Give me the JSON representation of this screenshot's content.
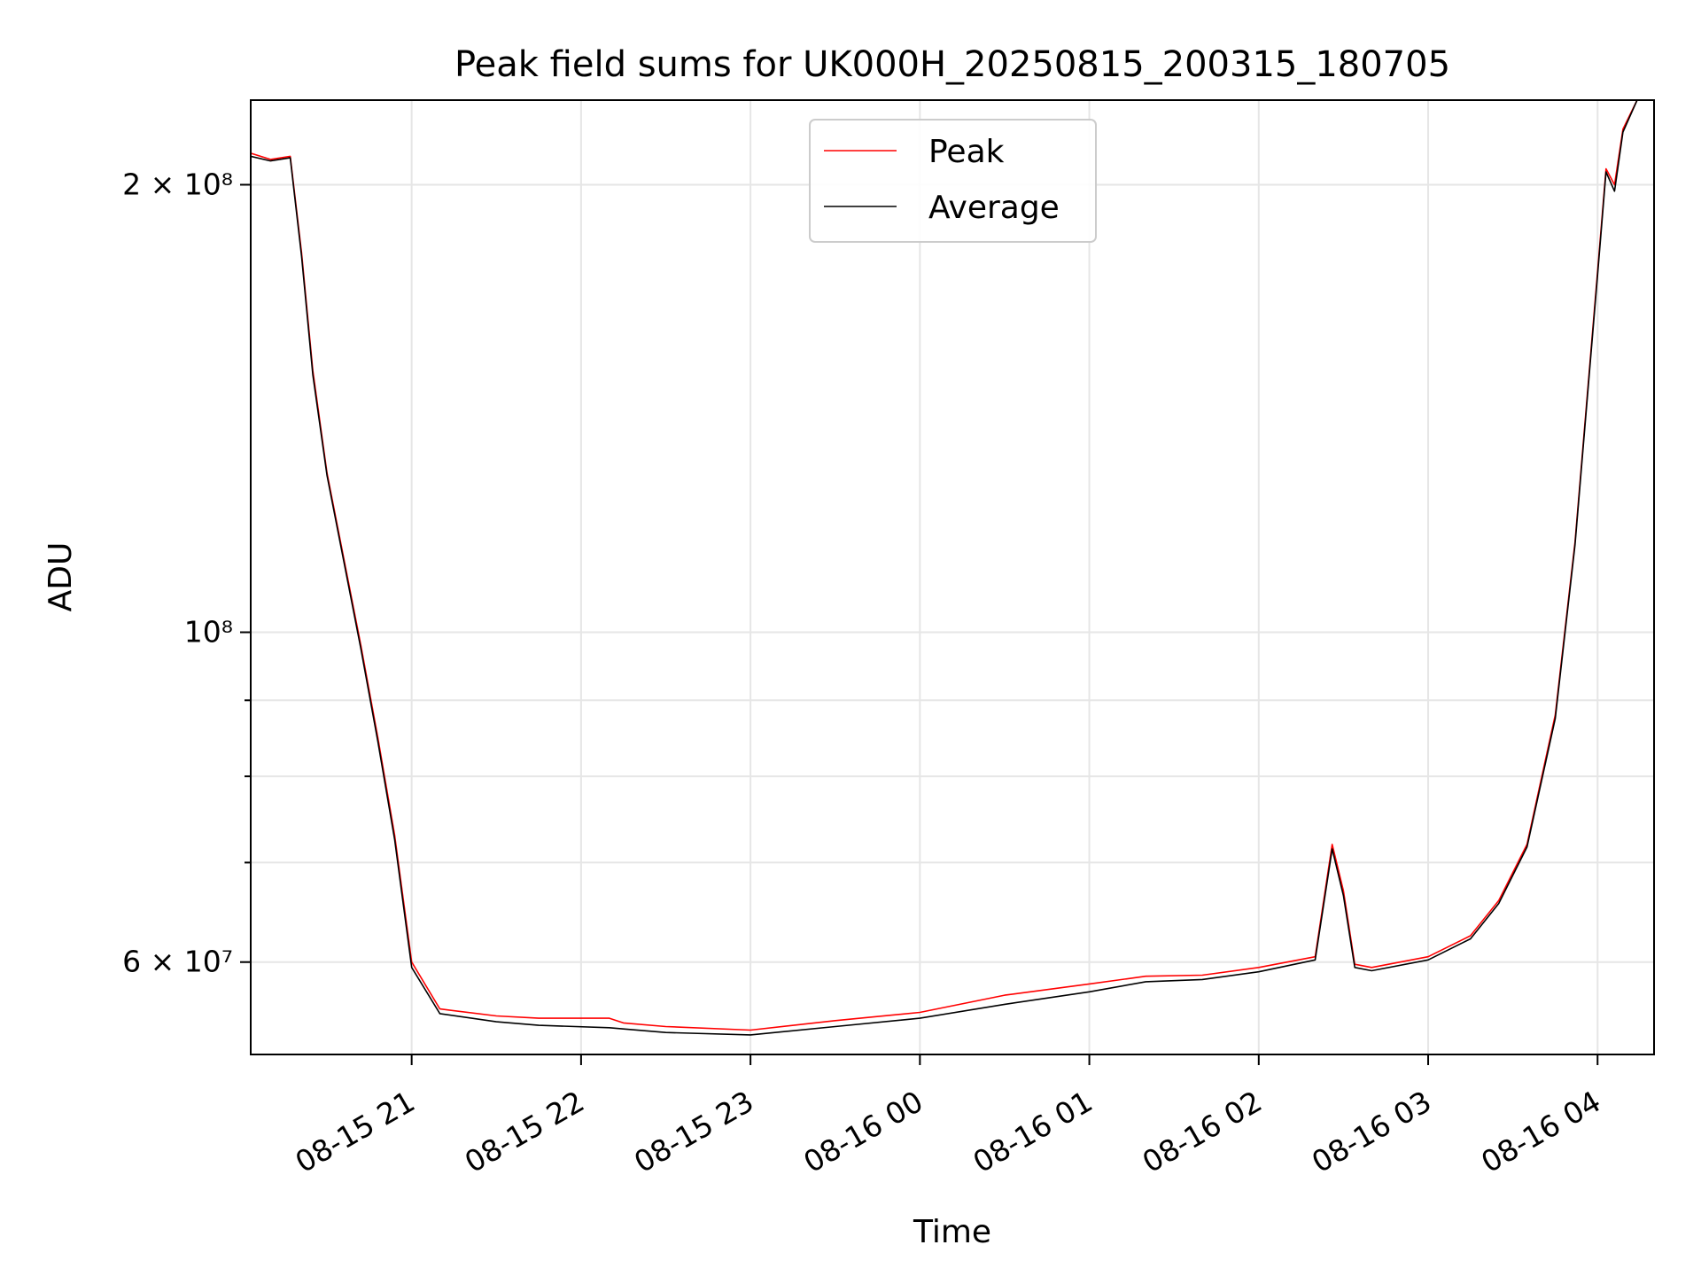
{
  "chart_data": {
    "type": "line",
    "title": "Peak field sums for UK000H_20250815_200315_180705",
    "xlabel": "Time",
    "ylabel": "ADU",
    "y_scale": "log",
    "ylim": [
      52000000,
      228000000
    ],
    "xlim": [
      "2025-08-15 20:03",
      "2025-08-16 04:20"
    ],
    "grid": true,
    "legend_position": "top-center",
    "x_ticks": [
      {
        "t": "2025-08-15 21:00",
        "label": "08-15 21"
      },
      {
        "t": "2025-08-15 22:00",
        "label": "08-15 22"
      },
      {
        "t": "2025-08-15 23:00",
        "label": "08-15 23"
      },
      {
        "t": "2025-08-16 00:00",
        "label": "08-16 00"
      },
      {
        "t": "2025-08-16 01:00",
        "label": "08-16 01"
      },
      {
        "t": "2025-08-16 02:00",
        "label": "08-16 02"
      },
      {
        "t": "2025-08-16 03:00",
        "label": "08-16 03"
      },
      {
        "t": "2025-08-16 04:00",
        "label": "08-16 04"
      }
    ],
    "y_ticks": [
      {
        "value": 200000000,
        "label": "2 × 10⁸"
      },
      {
        "value": 100000000,
        "label": "10⁸"
      },
      {
        "value": 60000000,
        "label": "6 × 10⁷"
      }
    ],
    "y_minor_ticks": [
      70000000,
      80000000,
      90000000
    ],
    "series": [
      {
        "name": "Peak",
        "color": "#ff0000",
        "x": [
          "2025-08-15 20:03",
          "2025-08-15 20:10",
          "2025-08-15 20:17",
          "2025-08-15 20:21",
          "2025-08-15 20:25",
          "2025-08-15 20:30",
          "2025-08-15 20:36",
          "2025-08-15 20:42",
          "2025-08-15 20:48",
          "2025-08-15 20:54",
          "2025-08-15 21:00",
          "2025-08-15 21:10",
          "2025-08-15 21:30",
          "2025-08-15 21:45",
          "2025-08-15 22:10",
          "2025-08-15 22:15",
          "2025-08-15 22:30",
          "2025-08-15 23:00",
          "2025-08-15 23:30",
          "2025-08-16 00:00",
          "2025-08-16 00:30",
          "2025-08-16 01:00",
          "2025-08-16 01:20",
          "2025-08-16 01:40",
          "2025-08-16 02:00",
          "2025-08-16 02:20",
          "2025-08-16 02:26",
          "2025-08-16 02:30",
          "2025-08-16 02:34",
          "2025-08-16 02:40",
          "2025-08-16 03:00",
          "2025-08-16 03:15",
          "2025-08-16 03:25",
          "2025-08-16 03:35",
          "2025-08-16 03:45",
          "2025-08-16 03:52",
          "2025-08-16 04:00",
          "2025-08-16 04:03",
          "2025-08-16 04:06",
          "2025-08-16 04:09",
          "2025-08-16 04:14"
        ],
        "values": [
          210000000,
          208000000,
          209000000,
          180000000,
          150000000,
          128000000,
          112000000,
          98000000,
          85000000,
          73000000,
          60000000,
          55800000,
          55200000,
          55000000,
          55000000,
          54600000,
          54300000,
          54000000,
          54800000,
          55500000,
          57000000,
          58000000,
          58700000,
          58800000,
          59500000,
          60500000,
          72000000,
          67000000,
          59800000,
          59500000,
          60500000,
          62500000,
          66000000,
          72000000,
          88000000,
          115000000,
          175000000,
          205000000,
          200000000,
          218000000,
          228000000
        ]
      },
      {
        "name": "Average",
        "color": "#000000",
        "x": [
          "2025-08-15 20:03",
          "2025-08-15 20:10",
          "2025-08-15 20:17",
          "2025-08-15 20:21",
          "2025-08-15 20:25",
          "2025-08-15 20:30",
          "2025-08-15 20:36",
          "2025-08-15 20:42",
          "2025-08-15 20:48",
          "2025-08-15 20:54",
          "2025-08-15 21:00",
          "2025-08-15 21:10",
          "2025-08-15 21:30",
          "2025-08-15 21:45",
          "2025-08-15 22:10",
          "2025-08-15 22:15",
          "2025-08-15 22:30",
          "2025-08-15 23:00",
          "2025-08-15 23:30",
          "2025-08-16 00:00",
          "2025-08-16 00:30",
          "2025-08-16 01:00",
          "2025-08-16 01:20",
          "2025-08-16 01:40",
          "2025-08-16 02:00",
          "2025-08-16 02:20",
          "2025-08-16 02:26",
          "2025-08-16 02:30",
          "2025-08-16 02:34",
          "2025-08-16 02:40",
          "2025-08-16 03:00",
          "2025-08-16 03:15",
          "2025-08-16 03:25",
          "2025-08-16 03:35",
          "2025-08-16 03:45",
          "2025-08-16 03:52",
          "2025-08-16 04:00",
          "2025-08-16 04:03",
          "2025-08-16 04:06",
          "2025-08-16 04:09",
          "2025-08-16 04:14"
        ],
        "values": [
          209000000,
          207500000,
          208500000,
          179000000,
          149000000,
          127500000,
          111500000,
          97500000,
          84500000,
          72500000,
          59500000,
          55400000,
          54700000,
          54400000,
          54200000,
          54100000,
          53800000,
          53600000,
          54300000,
          55000000,
          56200000,
          57300000,
          58200000,
          58400000,
          59100000,
          60200000,
          71500000,
          66500000,
          59500000,
          59200000,
          60200000,
          62200000,
          65700000,
          71700000,
          87500000,
          114500000,
          174000000,
          204000000,
          198000000,
          217000000,
          228000000
        ]
      }
    ]
  }
}
